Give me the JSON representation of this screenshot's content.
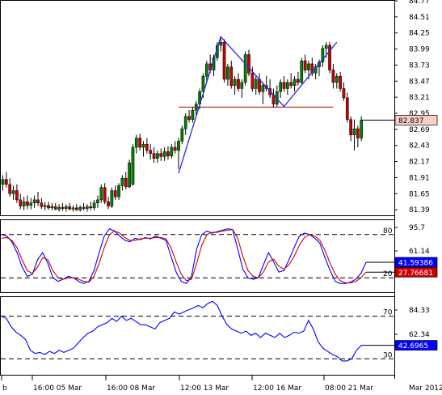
{
  "chart_data": [
    {
      "panel": "price",
      "type": "candlestick",
      "title": "",
      "ylim": [
        81.3,
        84.77
      ],
      "y_ticks": [
        "84.77",
        "84.51",
        "84.25",
        "83.99",
        "83.73",
        "83.47",
        "83.21",
        "82.95",
        "82.69",
        "82.43",
        "82.17",
        "81.91",
        "81.65",
        "81.39"
      ],
      "last_value": "82.837",
      "colors": {
        "up": "#008000",
        "down": "#cc0000",
        "pattern": "#2a2ae0",
        "neckline": "#c0392b",
        "badge_bg": "#f8cfc4"
      },
      "neckline": {
        "level": 83.05,
        "from_index": 50,
        "to_index": 94
      },
      "pattern_line": [
        [
          50,
          81.98
        ],
        [
          62,
          84.19
        ],
        [
          80,
          83.06
        ],
        [
          95,
          84.1
        ]
      ],
      "candles": [
        [
          81.8,
          81.95,
          81.7,
          81.88
        ],
        [
          81.88,
          82.0,
          81.75,
          81.8
        ],
        [
          81.8,
          81.9,
          81.6,
          81.65
        ],
        [
          81.65,
          81.78,
          81.55,
          81.7
        ],
        [
          81.7,
          81.8,
          81.5,
          81.55
        ],
        [
          81.55,
          81.65,
          81.4,
          81.45
        ],
        [
          81.45,
          81.6,
          81.38,
          81.52
        ],
        [
          81.52,
          81.62,
          81.4,
          81.46
        ],
        [
          81.46,
          81.58,
          81.4,
          81.5
        ],
        [
          81.5,
          81.62,
          81.42,
          81.55
        ],
        [
          81.55,
          81.68,
          81.45,
          81.5
        ],
        [
          81.5,
          81.58,
          81.4,
          81.44
        ],
        [
          81.44,
          81.52,
          81.38,
          81.46
        ],
        [
          81.46,
          81.52,
          81.39,
          81.42
        ],
        [
          81.42,
          81.5,
          81.38,
          81.44
        ],
        [
          81.44,
          81.5,
          81.38,
          81.4
        ],
        [
          81.4,
          81.48,
          81.36,
          81.43
        ],
        [
          81.43,
          81.5,
          81.37,
          81.41
        ],
        [
          81.41,
          81.48,
          81.36,
          81.44
        ],
        [
          81.44,
          81.5,
          81.38,
          81.4
        ],
        [
          81.4,
          81.46,
          81.36,
          81.42
        ],
        [
          81.42,
          81.48,
          81.37,
          81.39
        ],
        [
          81.39,
          81.46,
          81.36,
          81.43
        ],
        [
          81.43,
          81.5,
          81.38,
          81.41
        ],
        [
          81.41,
          81.48,
          81.36,
          81.44
        ],
        [
          81.44,
          81.52,
          81.38,
          81.42
        ],
        [
          81.42,
          81.55,
          81.38,
          81.5
        ],
        [
          81.5,
          81.62,
          81.42,
          81.55
        ],
        [
          81.55,
          81.8,
          81.5,
          81.75
        ],
        [
          81.75,
          81.82,
          81.48,
          81.52
        ],
        [
          81.52,
          81.6,
          81.4,
          81.45
        ],
        [
          81.45,
          81.75,
          81.42,
          81.7
        ],
        [
          81.7,
          81.78,
          81.55,
          81.6
        ],
        [
          81.6,
          81.82,
          81.55,
          81.78
        ],
        [
          81.78,
          81.95,
          81.7,
          81.9
        ],
        [
          81.9,
          82.0,
          81.72,
          81.76
        ],
        [
          81.76,
          82.2,
          81.74,
          82.15
        ],
        [
          81.8,
          82.45,
          81.78,
          82.4
        ],
        [
          82.4,
          82.6,
          82.3,
          82.55
        ],
        [
          82.55,
          82.62,
          82.35,
          82.4
        ],
        [
          82.4,
          82.5,
          82.25,
          82.45
        ],
        [
          82.45,
          82.55,
          82.3,
          82.35
        ],
        [
          82.35,
          82.45,
          82.2,
          82.3
        ],
        [
          82.3,
          82.4,
          82.15,
          82.22
        ],
        [
          82.22,
          82.35,
          82.15,
          82.3
        ],
        [
          82.3,
          82.38,
          82.18,
          82.25
        ],
        [
          82.25,
          82.4,
          82.18,
          82.33
        ],
        [
          82.33,
          82.42,
          82.2,
          82.26
        ],
        [
          82.26,
          82.45,
          82.22,
          82.4
        ],
        [
          82.4,
          82.5,
          82.3,
          82.35
        ],
        [
          82.35,
          82.55,
          82.05,
          82.5
        ],
        [
          82.5,
          82.75,
          82.45,
          82.7
        ],
        [
          82.7,
          82.95,
          82.6,
          82.9
        ],
        [
          82.9,
          83.0,
          82.8,
          82.85
        ],
        [
          82.85,
          83.05,
          82.8,
          83.0
        ],
        [
          83.0,
          83.15,
          82.92,
          83.1
        ],
        [
          83.1,
          83.35,
          83.02,
          83.3
        ],
        [
          83.3,
          83.6,
          83.2,
          83.55
        ],
        [
          83.55,
          83.8,
          83.45,
          83.75
        ],
        [
          83.75,
          83.9,
          83.6,
          83.65
        ],
        [
          83.65,
          83.9,
          83.55,
          83.85
        ],
        [
          83.85,
          84.1,
          83.8,
          84.05
        ],
        [
          84.05,
          84.19,
          83.95,
          84.1
        ],
        [
          84.1,
          84.15,
          83.45,
          83.5
        ],
        [
          83.5,
          83.75,
          83.4,
          83.7
        ],
        [
          83.7,
          83.8,
          83.35,
          83.4
        ],
        [
          83.4,
          83.55,
          83.25,
          83.5
        ],
        [
          83.5,
          83.6,
          83.3,
          83.35
        ],
        [
          83.35,
          83.5,
          83.2,
          83.45
        ],
        [
          83.45,
          83.95,
          83.4,
          83.9
        ],
        [
          83.9,
          83.98,
          83.55,
          83.6
        ],
        [
          83.6,
          83.7,
          83.3,
          83.35
        ],
        [
          83.35,
          83.55,
          83.25,
          83.5
        ],
        [
          83.5,
          83.6,
          83.25,
          83.3
        ],
        [
          83.3,
          83.45,
          83.1,
          83.4
        ],
        [
          83.4,
          83.55,
          83.3,
          83.35
        ],
        [
          83.35,
          83.5,
          83.2,
          83.25
        ],
        [
          83.25,
          83.35,
          83.05,
          83.1
        ],
        [
          83.1,
          83.4,
          83.06,
          83.3
        ],
        [
          83.3,
          83.5,
          83.2,
          83.45
        ],
        [
          83.45,
          83.55,
          83.3,
          83.35
        ],
        [
          83.35,
          83.5,
          83.25,
          83.45
        ],
        [
          83.45,
          83.6,
          83.35,
          83.4
        ],
        [
          83.4,
          83.55,
          83.3,
          83.5
        ],
        [
          83.5,
          83.62,
          83.4,
          83.45
        ],
        [
          83.45,
          83.85,
          83.42,
          83.8
        ],
        [
          83.8,
          83.9,
          83.6,
          83.65
        ],
        [
          83.65,
          83.8,
          83.5,
          83.75
        ],
        [
          83.75,
          83.85,
          83.55,
          83.6
        ],
        [
          83.6,
          83.75,
          83.5,
          83.7
        ],
        [
          83.7,
          83.82,
          83.55,
          83.78
        ],
        [
          83.78,
          84.05,
          83.7,
          84.0
        ],
        [
          84.0,
          84.1,
          83.85,
          84.05
        ],
        [
          84.05,
          84.1,
          83.6,
          83.65
        ],
        [
          83.65,
          83.75,
          83.35,
          83.45
        ],
        [
          83.45,
          83.6,
          83.35,
          83.55
        ],
        [
          83.55,
          83.62,
          83.3,
          83.35
        ],
        [
          83.35,
          83.45,
          83.15,
          83.2
        ],
        [
          83.2,
          83.28,
          82.8,
          82.85
        ],
        [
          82.85,
          82.9,
          82.5,
          82.6
        ],
        [
          82.6,
          82.85,
          82.35,
          82.7
        ],
        [
          82.7,
          82.75,
          82.4,
          82.55
        ],
        [
          82.55,
          82.9,
          82.5,
          82.84
        ]
      ]
    },
    {
      "panel": "stochastic",
      "type": "line",
      "ylim": [
        0,
        100
      ],
      "top_label": "95.7",
      "mid_label": "61.14",
      "levels": [
        {
          "value": 80,
          "label": "80"
        },
        {
          "value": 20,
          "label": "20"
        }
      ],
      "series": [
        {
          "color": "#0000ff",
          "last_value": "41.59386",
          "values": [
            80,
            78,
            70,
            55,
            35,
            22,
            25,
            45,
            55,
            40,
            20,
            15,
            18,
            22,
            20,
            15,
            12,
            15,
            30,
            55,
            78,
            88,
            85,
            78,
            72,
            70,
            75,
            73,
            76,
            74,
            78,
            75,
            72,
            50,
            28,
            15,
            12,
            22,
            60,
            80,
            85,
            82,
            84,
            86,
            88,
            87,
            60,
            32,
            20,
            18,
            20,
            38,
            55,
            42,
            28,
            30,
            45,
            62,
            78,
            82,
            80,
            75,
            68,
            48,
            30,
            15,
            12,
            12,
            14,
            18,
            26,
            41.59
          ]
        },
        {
          "color": "#cc0000",
          "last_value": "27.76681",
          "values": [
            75,
            76,
            72,
            62,
            45,
            30,
            26,
            35,
            48,
            45,
            30,
            20,
            18,
            20,
            20,
            18,
            15,
            14,
            22,
            40,
            62,
            80,
            85,
            82,
            76,
            72,
            72,
            74,
            75,
            75,
            76,
            76,
            74,
            62,
            42,
            25,
            16,
            18,
            40,
            65,
            80,
            83,
            83,
            85,
            86,
            87,
            75,
            50,
            30,
            22,
            20,
            28,
            42,
            46,
            36,
            32,
            38,
            50,
            65,
            76,
            80,
            78,
            72,
            58,
            40,
            25,
            16,
            13,
            13,
            15,
            20,
            27.77
          ]
        }
      ]
    },
    {
      "panel": "rsi",
      "type": "line",
      "ylim": [
        15,
        88
      ],
      "top_label": "84.33",
      "mid_label": "62.34",
      "levels": [
        {
          "value": 70,
          "label": "70"
        },
        {
          "value": 30,
          "label": "30"
        }
      ],
      "series": [
        {
          "color": "#0000ff",
          "last_value": "42.6965",
          "values": [
            70,
            68,
            60,
            55,
            52,
            48,
            38,
            35,
            36,
            34,
            37,
            35,
            38,
            36,
            38,
            40,
            45,
            50,
            54,
            56,
            60,
            62,
            64,
            68,
            65,
            70,
            66,
            68,
            65,
            62,
            62,
            60,
            58,
            64,
            66,
            68,
            74,
            72,
            74,
            76,
            78,
            80,
            78,
            82,
            84,
            80,
            70,
            62,
            58,
            56,
            54,
            56,
            52,
            54,
            50,
            54,
            52,
            50,
            54,
            50,
            52,
            55,
            54,
            56,
            66,
            58,
            46,
            40,
            37,
            34,
            32,
            28,
            28,
            30,
            38,
            42.7,
            42.7
          ]
        }
      ]
    }
  ],
  "x_axis": {
    "labels": [
      "b",
      "16:00 05 Mar",
      "16:00 08 Mar",
      "12:00 13 Mar",
      "12:00 16 Mar",
      "08:00 21 Mar",
      "Mar 2012"
    ]
  }
}
